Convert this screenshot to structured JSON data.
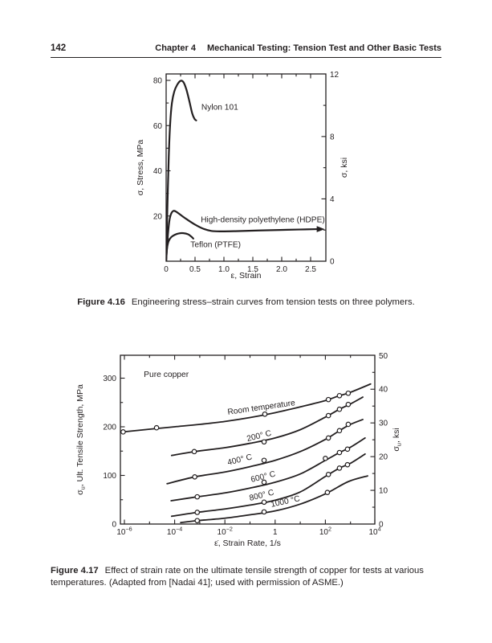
{
  "ink": "#231f20",
  "page": {
    "number": "142",
    "chapter": "Chapter 4",
    "title": "Mechanical Testing: Tension Test and Other Basic Tests"
  },
  "figure16": {
    "label": "Figure 4.16",
    "text": "Engineering stress–strain curves from tension tests on three polymers."
  },
  "figure17": {
    "label": "Figure 4.17",
    "text": "Effect of strain rate on the ultimate tensile strength of copper for tests at various temperatures. (Adapted from [Nadai 41]; used with permission of ASME.)"
  },
  "chart_data": [
    {
      "id": "figure-4-16",
      "type": "line",
      "title": "",
      "xlabel": "ε, Strain",
      "ylabel_left": {
        "pre": "σ",
        "sub": "",
        "post": ", Stress, MPa"
      },
      "ylabel_right": {
        "pre": "σ",
        "sub": "",
        "post": ", ksi"
      },
      "xlim": [
        0,
        2.76
      ],
      "ylim_mpa": [
        0,
        82.8
      ],
      "ylim_ksi": [
        0,
        12
      ],
      "grid": false,
      "x_ticks": [
        {
          "v": 0,
          "label": "0"
        },
        {
          "v": 0.5,
          "label": "0.5"
        },
        {
          "v": 1.0,
          "label": "1.0"
        },
        {
          "v": 1.5,
          "label": "1.5"
        },
        {
          "v": 2.0,
          "label": "2.0"
        },
        {
          "v": 2.5,
          "label": "2.5"
        }
      ],
      "x_minor": [
        0.25,
        0.75,
        1.25,
        1.75,
        2.25
      ],
      "y_ticks_mpa": [
        {
          "v": 20,
          "label": "20"
        },
        {
          "v": 40,
          "label": "40"
        },
        {
          "v": 60,
          "label": "60"
        },
        {
          "v": 80,
          "label": "80"
        }
      ],
      "y_minor_mpa": [
        10,
        30,
        50,
        70
      ],
      "y_ticks_ksi": [
        {
          "v": 0,
          "label": "0"
        },
        {
          "v": 4,
          "label": "4"
        },
        {
          "v": 8,
          "label": "8"
        },
        {
          "v": 12,
          "label": "12"
        }
      ],
      "y_minor_ksi": [
        2,
        6,
        10
      ],
      "series": [
        {
          "name": "Nylon 101",
          "label_pos": [
            0.61,
            67
          ],
          "label_rot": 0,
          "points": [
            [
              0,
              0
            ],
            [
              0.02,
              22
            ],
            [
              0.045,
              46
            ],
            [
              0.07,
              61
            ],
            [
              0.1,
              70
            ],
            [
              0.14,
              75
            ],
            [
              0.19,
              78
            ],
            [
              0.25,
              79.8
            ],
            [
              0.3,
              79.2
            ],
            [
              0.35,
              76
            ],
            [
              0.4,
              71
            ],
            [
              0.45,
              65.5
            ],
            [
              0.49,
              63
            ],
            [
              0.52,
              62.3
            ]
          ]
        },
        {
          "name": "High-density polyethylene (HDPE)",
          "label_pos": [
            0.6,
            17.3
          ],
          "label_rot": 0,
          "arrow_end": true,
          "points": [
            [
              0,
              0
            ],
            [
              0.015,
              6
            ],
            [
              0.035,
              13
            ],
            [
              0.06,
              18.5
            ],
            [
              0.09,
              21.2
            ],
            [
              0.13,
              22.3
            ],
            [
              0.18,
              21.8
            ],
            [
              0.26,
              20.3
            ],
            [
              0.36,
              18.5
            ],
            [
              0.5,
              16.2
            ],
            [
              0.64,
              14.4
            ],
            [
              0.78,
              13.4
            ],
            [
              0.95,
              13.2
            ],
            [
              1.2,
              13.3
            ],
            [
              1.6,
              13.6
            ],
            [
              2.1,
              13.9
            ],
            [
              2.62,
              14.2
            ]
          ]
        },
        {
          "name": "Teflon (PTFE)",
          "label_pos": [
            0.42,
            6.2
          ],
          "label_rot": 0,
          "points": [
            [
              0,
              0
            ],
            [
              0.008,
              3.5
            ],
            [
              0.02,
              6.5
            ],
            [
              0.045,
              9
            ],
            [
              0.09,
              10.7
            ],
            [
              0.15,
              11.7
            ],
            [
              0.22,
              12.3
            ],
            [
              0.3,
              12.4
            ],
            [
              0.38,
              11.9
            ],
            [
              0.44,
              10.8
            ],
            [
              0.47,
              10.0
            ]
          ]
        }
      ]
    },
    {
      "id": "figure-4-17",
      "type": "line",
      "x_scale": "log",
      "title": "Pure copper",
      "annotation": {
        "text": "Pure copper",
        "pos": [
          -5.23,
          302.5
        ]
      },
      "xlabel": "ε̇, Strain Rate, 1/s",
      "ylabel_left": {
        "pre": "σ",
        "sub": "u",
        "post": ", Ult. Tensile Strength, MPa"
      },
      "ylabel_right": {
        "pre": "σ",
        "sub": "u",
        "post": ", ksi"
      },
      "xlim_log": [
        -6.16,
        4.03
      ],
      "ylim_mpa": [
        0,
        347
      ],
      "ylim_ksi": [
        0,
        50
      ],
      "grid": false,
      "x_ticks": [
        {
          "log": -6,
          "base": "10",
          "sup": "−6"
        },
        {
          "log": -4,
          "base": "10",
          "sup": "−4"
        },
        {
          "log": -2,
          "base": "10",
          "sup": "−2"
        },
        {
          "log": 0,
          "base": "1",
          "sup": ""
        },
        {
          "log": 2,
          "base": "10",
          "sup": "2"
        },
        {
          "log": 4,
          "base": "10",
          "sup": "4"
        }
      ],
      "x_minor_log": [
        -5,
        -3,
        -1,
        1,
        3
      ],
      "y_ticks_mpa": [
        {
          "v": 0,
          "label": "0"
        },
        {
          "v": 100,
          "label": "100"
        },
        {
          "v": 200,
          "label": "200"
        },
        {
          "v": 300,
          "label": "300"
        }
      ],
      "y_minor_mpa": [
        50,
        150,
        250
      ],
      "y_ticks_ksi": [
        {
          "v": 0,
          "label": "0"
        },
        {
          "v": 10,
          "label": "10"
        },
        {
          "v": 20,
          "label": "20"
        },
        {
          "v": 30,
          "label": "30"
        },
        {
          "v": 40,
          "label": "40"
        },
        {
          "v": 50,
          "label": "50"
        }
      ],
      "y_minor_ksi": [
        5,
        15,
        25,
        35,
        45
      ],
      "series": [
        {
          "name": "Room temperature",
          "label_pos": [
            -1.88,
            225
          ],
          "label_rot": -8,
          "points": [
            [
              -6.15,
              189
            ],
            [
              -5,
              195
            ],
            [
              -4,
              200
            ],
            [
              -3,
              205
            ],
            [
              -2,
              211
            ],
            [
              -1,
              219
            ],
            [
              0,
              229
            ],
            [
              1,
              241
            ],
            [
              2,
              254
            ],
            [
              2.5,
              263
            ],
            [
              3,
              271
            ],
            [
              3.8,
              288
            ]
          ],
          "markers": [
            [
              -6.05,
              189.5
            ],
            [
              -4.72,
              198
            ],
            [
              -0.41,
              226
            ],
            [
              2.12,
              256
            ],
            [
              2.56,
              264
            ],
            [
              2.91,
              269
            ]
          ]
        },
        {
          "name": "200° C",
          "label_pos": [
            -1.1,
            170
          ],
          "label_rot": -14,
          "points": [
            [
              -4.12,
              141
            ],
            [
              -3.22,
              149
            ],
            [
              -2,
              157
            ],
            [
              -1,
              166
            ],
            [
              0,
              177
            ],
            [
              1,
              194
            ],
            [
              2,
              220
            ],
            [
              2.56,
              236
            ],
            [
              3,
              247
            ],
            [
              3.49,
              261
            ]
          ],
          "markers": [
            [
              -3.22,
              149
            ],
            [
              -0.44,
              169
            ],
            [
              2.12,
              223
            ],
            [
              2.56,
              236
            ],
            [
              2.91,
              246
            ]
          ]
        },
        {
          "name": "400° C",
          "label_pos": [
            -1.87,
            121
          ],
          "label_rot": -14,
          "points": [
            [
              -4.3,
              83
            ],
            [
              -3.2,
              97
            ],
            [
              -2,
              107
            ],
            [
              -1,
              118
            ],
            [
              0,
              131
            ],
            [
              1,
              149
            ],
            [
              2,
              174
            ],
            [
              2.56,
              192
            ],
            [
              3,
              205
            ],
            [
              3.49,
              215
            ]
          ],
          "markers": [
            [
              -3.2,
              97
            ],
            [
              -0.44,
              131
            ],
            [
              2.12,
              177
            ],
            [
              2.56,
              192
            ],
            [
              2.91,
              205
            ]
          ]
        },
        {
          "name": "600° C",
          "label_pos": [
            -0.94,
            86
          ],
          "label_rot": -14,
          "points": [
            [
              -4.14,
              48
            ],
            [
              -3.1,
              56
            ],
            [
              -2,
              64
            ],
            [
              -1,
              74
            ],
            [
              0,
              86
            ],
            [
              1,
              103
            ],
            [
              2,
              131
            ],
            [
              2.56,
              147
            ],
            [
              3,
              158
            ],
            [
              3.58,
              177
            ]
          ],
          "markers": [
            [
              -3.1,
              56
            ],
            [
              -0.44,
              86
            ],
            [
              2.0,
              135
            ],
            [
              2.56,
              147
            ],
            [
              2.88,
              154
            ]
          ]
        },
        {
          "name": "800° C",
          "label_pos": [
            -1.0,
            48
          ],
          "label_rot": -14,
          "points": [
            [
              -4.12,
              16
            ],
            [
              -3.1,
              24
            ],
            [
              -2,
              31
            ],
            [
              -1,
              39
            ],
            [
              0,
              49
            ],
            [
              1,
              66
            ],
            [
              2,
              98
            ],
            [
              2.56,
              115
            ],
            [
              3,
              125
            ],
            [
              3.58,
              144
            ]
          ],
          "markers": [
            [
              -3.1,
              24
            ],
            [
              -0.44,
              45
            ],
            [
              2.12,
              102
            ],
            [
              2.56,
              115
            ],
            [
              2.88,
              122
            ]
          ]
        },
        {
          "name": "1000 °C",
          "label_pos": [
            -0.15,
            35
          ],
          "label_rot": -12,
          "points": [
            [
              -3.76,
              3
            ],
            [
              -3.1,
              7
            ],
            [
              -2,
              12
            ],
            [
              -1,
              19
            ],
            [
              0,
              27
            ],
            [
              1,
              41
            ],
            [
              2,
              62
            ],
            [
              2.9,
              87
            ],
            [
              3.68,
              99
            ]
          ],
          "markers": [
            [
              -3.1,
              7
            ],
            [
              -0.44,
              25
            ],
            [
              2.08,
              65
            ]
          ]
        }
      ]
    }
  ]
}
